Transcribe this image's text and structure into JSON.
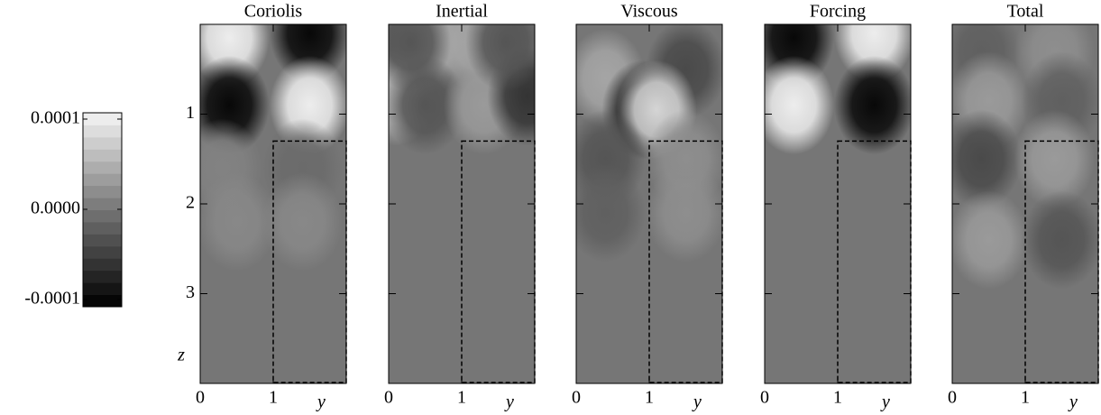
{
  "chart_data": {
    "type": "contour",
    "xlabel": "y",
    "ylabel": "z",
    "xlim": [
      0,
      2
    ],
    "xticks": [
      0,
      1
    ],
    "ylim": [
      0,
      4
    ],
    "yticks": [
      1,
      2,
      3
    ],
    "colorbar": {
      "lim": [
        -0.000108,
        0.000107
      ],
      "ticks": [
        0.0001,
        {
          "value": 0,
          "label": "0.0000"
        },
        -0.0001
      ]
    },
    "inset": {
      "x": [
        1,
        2
      ],
      "y": [
        1.3,
        4
      ]
    },
    "panels": [
      {
        "title": "Coriolis",
        "blobs": [
          {
            "x": 0.4,
            "y": 0.15,
            "value": 0.0001
          },
          {
            "x": 1.5,
            "y": 0.1,
            "value": -0.0001
          },
          {
            "x": 0.4,
            "y": 0.9,
            "value": -0.0001
          },
          {
            "x": 1.5,
            "y": 0.9,
            "value": 0.0001
          },
          {
            "x": 0.3,
            "y": 1.6,
            "value": 1e-05
          },
          {
            "x": 1.4,
            "y": 1.6,
            "value": -1e-05
          },
          {
            "x": 0.5,
            "y": 2.2,
            "value": 1.5e-05
          },
          {
            "x": 1.4,
            "y": 2.2,
            "value": 1.5e-05
          }
        ]
      },
      {
        "title": "Inertial",
        "blobs": [
          {
            "x": 0.1,
            "y": 0.8,
            "value": 5e-05
          },
          {
            "x": 0.6,
            "y": 0.2,
            "value": 4e-05
          },
          {
            "x": 1.2,
            "y": 0.2,
            "value": 4e-05
          },
          {
            "x": 0.5,
            "y": 0.9,
            "value": -3e-05
          },
          {
            "x": 1.3,
            "y": 0.9,
            "value": 3e-05
          },
          {
            "x": 1.9,
            "y": 0.8,
            "value": -6e-05
          },
          {
            "x": 0.3,
            "y": 0.2,
            "value": -3e-05
          },
          {
            "x": 1.6,
            "y": 0.2,
            "value": -3e-05
          }
        ]
      },
      {
        "title": "Viscous",
        "blobs": [
          {
            "x": 0.4,
            "y": 0.6,
            "value": 4e-05
          },
          {
            "x": 1.5,
            "y": 0.5,
            "value": -4e-05
          },
          {
            "x": 0.9,
            "y": 0.95,
            "value": -8e-05
          },
          {
            "x": 1.1,
            "y": 0.95,
            "value": 8e-05
          },
          {
            "x": 0.4,
            "y": 1.5,
            "value": -3e-05
          },
          {
            "x": 1.5,
            "y": 1.5,
            "value": 2e-05
          },
          {
            "x": 0.4,
            "y": 2.1,
            "value": -2e-05
          },
          {
            "x": 1.5,
            "y": 2.1,
            "value": 2e-05
          }
        ]
      },
      {
        "title": "Forcing",
        "blobs": [
          {
            "x": 0.4,
            "y": 0.15,
            "value": -0.0001
          },
          {
            "x": 1.5,
            "y": 0.1,
            "value": 0.0001
          },
          {
            "x": 0.4,
            "y": 0.9,
            "value": 0.0001
          },
          {
            "x": 1.5,
            "y": 0.9,
            "value": -0.0001
          }
        ]
      },
      {
        "title": "Total",
        "blobs": [
          {
            "x": 0.4,
            "y": 0.3,
            "value": -2e-05
          },
          {
            "x": 1.4,
            "y": 0.3,
            "value": 2e-05
          },
          {
            "x": 0.5,
            "y": 0.85,
            "value": 3e-05
          },
          {
            "x": 1.5,
            "y": 0.85,
            "value": -2e-05
          },
          {
            "x": 0.4,
            "y": 1.5,
            "value": -4e-05
          },
          {
            "x": 1.4,
            "y": 1.5,
            "value": 3e-05
          },
          {
            "x": 0.5,
            "y": 2.4,
            "value": 3e-05
          },
          {
            "x": 1.5,
            "y": 2.4,
            "value": -3e-05
          }
        ]
      }
    ]
  }
}
